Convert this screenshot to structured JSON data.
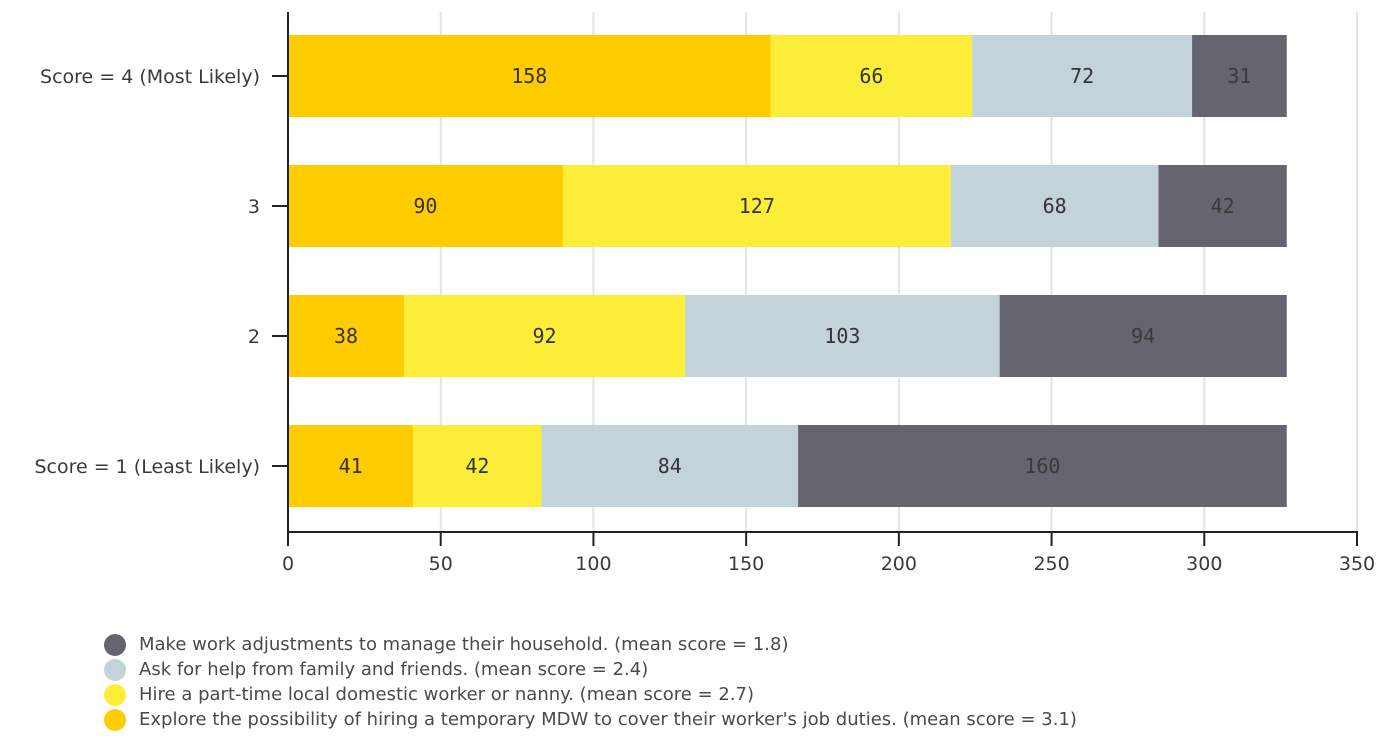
{
  "chart_data": {
    "type": "bar",
    "orientation": "horizontal",
    "stacked": true,
    "categories": [
      "Score = 4 (Most Likely)",
      "3",
      "2",
      "Score = 1 (Least Likely)"
    ],
    "series": [
      {
        "name": "Explore the possibility of hiring a temporary MDW to cover their worker's job duties. (mean score = 3.1)",
        "color": "#FFCC00",
        "label_color": "#333333",
        "values": [
          158,
          90,
          38,
          41
        ]
      },
      {
        "name": "Hire a part-time local domestic worker or nanny. (mean score = 2.7)",
        "color": "#FCEE38",
        "label_color": "#333333",
        "values": [
          66,
          127,
          92,
          42
        ]
      },
      {
        "name": "Ask for help from family and friends. (mean score = 2.4)",
        "color": "#C3D3DA",
        "label_color": "#333333",
        "values": [
          72,
          68,
          103,
          84
        ]
      },
      {
        "name": "Make work adjustments to manage their household. (mean score = 1.8)",
        "color": "#65646F",
        "label_color": "#3a3a3a",
        "values": [
          31,
          42,
          94,
          160
        ]
      }
    ],
    "xlim": [
      0,
      350
    ],
    "xticks": [
      0,
      50,
      100,
      150,
      200,
      250,
      300,
      350
    ],
    "grid": "vertical",
    "legend_position": "bottom-left",
    "legend_order": [
      3,
      2,
      1,
      0
    ]
  }
}
